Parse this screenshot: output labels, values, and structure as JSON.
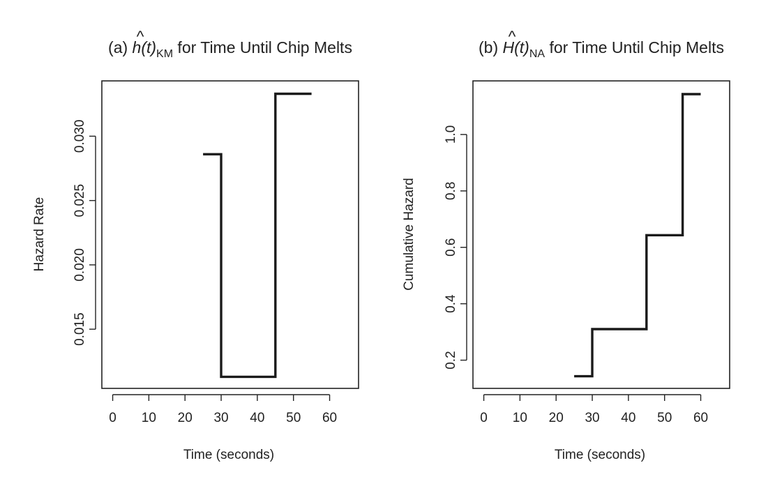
{
  "chart_data": [
    {
      "type": "line",
      "step": true,
      "title": {
        "prefix": "(a)  ",
        "hat_symbol": "^",
        "func_symbol": "h",
        "func_arg": "(t)",
        "subscript": "KM",
        "suffix": " for Time Until Chip Melts"
      },
      "xlabel": "Time (seconds)",
      "ylabel": "Hazard Rate",
      "xlim": [
        -3,
        68
      ],
      "ylim": [
        0.0104,
        0.0343
      ],
      "xticks": [
        0,
        10,
        20,
        30,
        40,
        50,
        60
      ],
      "yticks": [
        0.015,
        0.02,
        0.025,
        0.03
      ],
      "ytick_labels": [
        "0.015",
        "0.020",
        "0.025",
        "0.030"
      ],
      "series": [
        {
          "points": [
            {
              "x": 25,
              "y": 0.0286
            },
            {
              "x": 30,
              "y": 0.0286
            },
            {
              "x": 30,
              "y": 0.0113
            },
            {
              "x": 45,
              "y": 0.0113
            },
            {
              "x": 45,
              "y": 0.0333
            },
            {
              "x": 55,
              "y": 0.0333
            }
          ]
        }
      ]
    },
    {
      "type": "line",
      "step": true,
      "title": {
        "prefix": "(b)  ",
        "hat_symbol": "^",
        "func_symbol": "H",
        "func_arg": "(t)",
        "subscript": "NA",
        "suffix": " for Time Until Chip Melts"
      },
      "xlabel": "Time (seconds)",
      "ylabel": "Cumulative Hazard",
      "xlim": [
        -3,
        68
      ],
      "ylim": [
        0.1,
        1.19
      ],
      "xticks": [
        0,
        10,
        20,
        30,
        40,
        50,
        60
      ],
      "yticks": [
        0.2,
        0.4,
        0.6,
        0.8,
        1.0
      ],
      "ytick_labels": [
        "0.2",
        "0.4",
        "0.6",
        "0.8",
        "1.0"
      ],
      "series": [
        {
          "points": [
            {
              "x": 25,
              "y": 0.143
            },
            {
              "x": 30,
              "y": 0.143
            },
            {
              "x": 30,
              "y": 0.31
            },
            {
              "x": 45,
              "y": 0.31
            },
            {
              "x": 45,
              "y": 0.643
            },
            {
              "x": 55,
              "y": 0.643
            },
            {
              "x": 55,
              "y": 1.143
            },
            {
              "x": 60,
              "y": 1.143
            }
          ]
        }
      ]
    }
  ]
}
